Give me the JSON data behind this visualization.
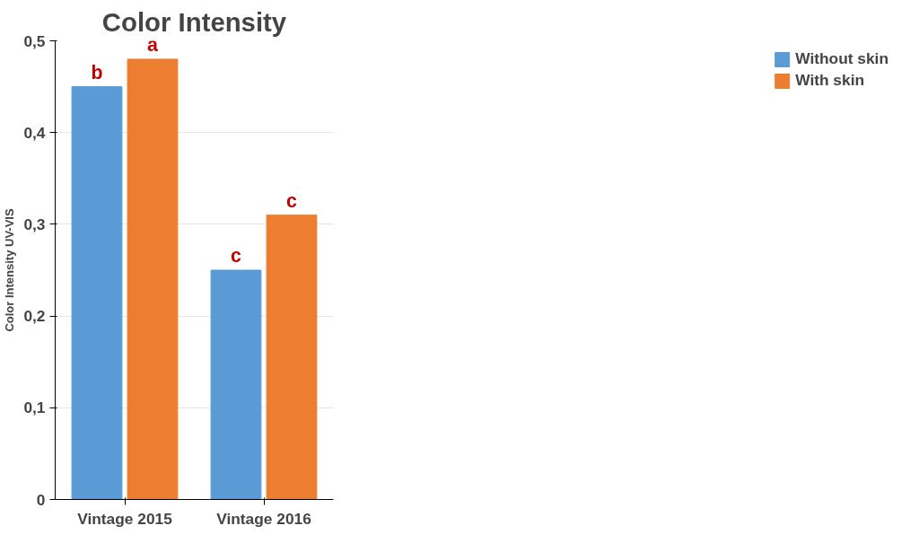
{
  "chart_data": {
    "type": "bar",
    "title": "Color Intensity",
    "ylabel": "Color Intensity UV-VIS",
    "categories": [
      "Vintage 2015",
      "Vintage 2016"
    ],
    "series": [
      {
        "name": "Without skin",
        "color": "#5b9bd5",
        "values": [
          0.45,
          0.25
        ]
      },
      {
        "name": "With skin",
        "color": "#ed7d31",
        "values": [
          0.48,
          0.31
        ]
      }
    ],
    "ylim": [
      0,
      0.5
    ],
    "yticks": [
      {
        "value": 0,
        "label": "0"
      },
      {
        "value": 0.1,
        "label": "0,1"
      },
      {
        "value": 0.2,
        "label": "0,2"
      },
      {
        "value": 0.3,
        "label": "0,3"
      },
      {
        "value": 0.4,
        "label": "0,4"
      },
      {
        "value": 0.5,
        "label": "0,5"
      }
    ],
    "grid": "y",
    "legend": "right",
    "annotations": [
      {
        "text": "b",
        "x": "Vintage 2015",
        "y": 0.45
      },
      {
        "text": "a",
        "x": "Vintage 2015",
        "y": 0.48
      },
      {
        "text": "c",
        "x": "Vintage 2016",
        "y": 0.25
      },
      {
        "text": "c",
        "x": "Vintage 2016",
        "y": 0.31
      }
    ]
  }
}
